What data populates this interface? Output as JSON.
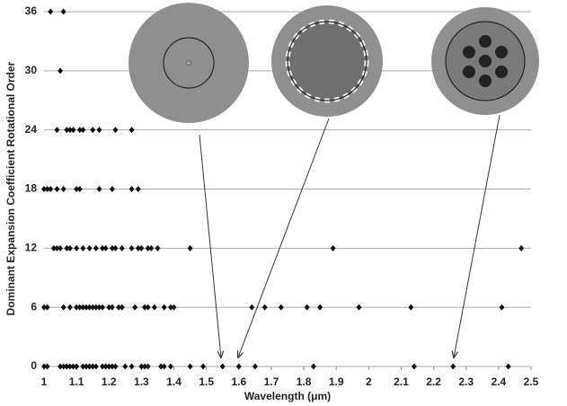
{
  "chart_data": {
    "type": "scatter",
    "xlabel": "Wavelength (μm)",
    "ylabel": "Dominant Expansion Coefficient Rotational Order",
    "x": [
      1.02,
      1.06,
      1.05,
      1.04,
      1.07,
      1.08,
      1.09,
      1.11,
      1.12,
      1.15,
      1.17,
      1.22,
      1.27,
      1.0,
      1.01,
      1.02,
      1.04,
      1.06,
      1.1,
      1.11,
      1.17,
      1.21,
      1.27,
      1.29,
      1.03,
      1.04,
      1.05,
      1.07,
      1.08,
      1.1,
      1.12,
      1.14,
      1.16,
      1.18,
      1.19,
      1.21,
      1.22,
      1.24,
      1.27,
      1.29,
      1.3,
      1.32,
      1.33,
      1.35,
      1.45,
      1.89,
      2.47,
      1.0,
      1.01,
      1.06,
      1.08,
      1.1,
      1.11,
      1.12,
      1.13,
      1.14,
      1.15,
      1.16,
      1.17,
      1.18,
      1.2,
      1.21,
      1.23,
      1.24,
      1.28,
      1.31,
      1.32,
      1.34,
      1.37,
      1.39,
      1.4,
      1.64,
      1.68,
      1.73,
      1.81,
      1.85,
      1.97,
      2.13,
      2.41,
      1.0,
      1.01,
      1.05,
      1.06,
      1.07,
      1.08,
      1.09,
      1.1,
      1.12,
      1.13,
      1.14,
      1.15,
      1.16,
      1.18,
      1.19,
      1.2,
      1.21,
      1.22,
      1.25,
      1.27,
      1.3,
      1.31,
      1.32,
      1.36,
      1.37,
      1.39,
      1.45,
      1.49,
      1.55,
      1.6,
      1.65,
      1.83,
      2.14,
      2.26,
      2.43
    ],
    "values": [
      36,
      36,
      30,
      24,
      24,
      24,
      24,
      24,
      24,
      24,
      24,
      24,
      24,
      18,
      18,
      18,
      18,
      18,
      18,
      18,
      18,
      18,
      18,
      18,
      12,
      12,
      12,
      12,
      12,
      12,
      12,
      12,
      12,
      12,
      12,
      12,
      12,
      12,
      12,
      12,
      12,
      12,
      12,
      12,
      12,
      12,
      12,
      6,
      6,
      6,
      6,
      6,
      6,
      6,
      6,
      6,
      6,
      6,
      6,
      6,
      6,
      6,
      6,
      6,
      6,
      6,
      6,
      6,
      6,
      6,
      6,
      6,
      6,
      6,
      6,
      6,
      6,
      6,
      6,
      0,
      0,
      0,
      0,
      0,
      0,
      0,
      0,
      0,
      0,
      0,
      0,
      0,
      0,
      0,
      0,
      0,
      0,
      0,
      0,
      0,
      0,
      0,
      0,
      0,
      0,
      0,
      0,
      0,
      0,
      0,
      0,
      0,
      0,
      0
    ],
    "color": "#111111",
    "xlim": [
      1,
      2.5
    ],
    "ylim": [
      0,
      36
    ],
    "xticks": [
      1,
      1.1,
      1.2,
      1.3,
      1.4,
      1.5,
      1.6,
      1.7,
      1.8,
      1.9,
      2,
      2.1,
      2.2,
      2.3,
      2.4,
      2.5
    ],
    "yticks": [
      0,
      6,
      12,
      18,
      24,
      30,
      36
    ],
    "grid": true
  }
}
